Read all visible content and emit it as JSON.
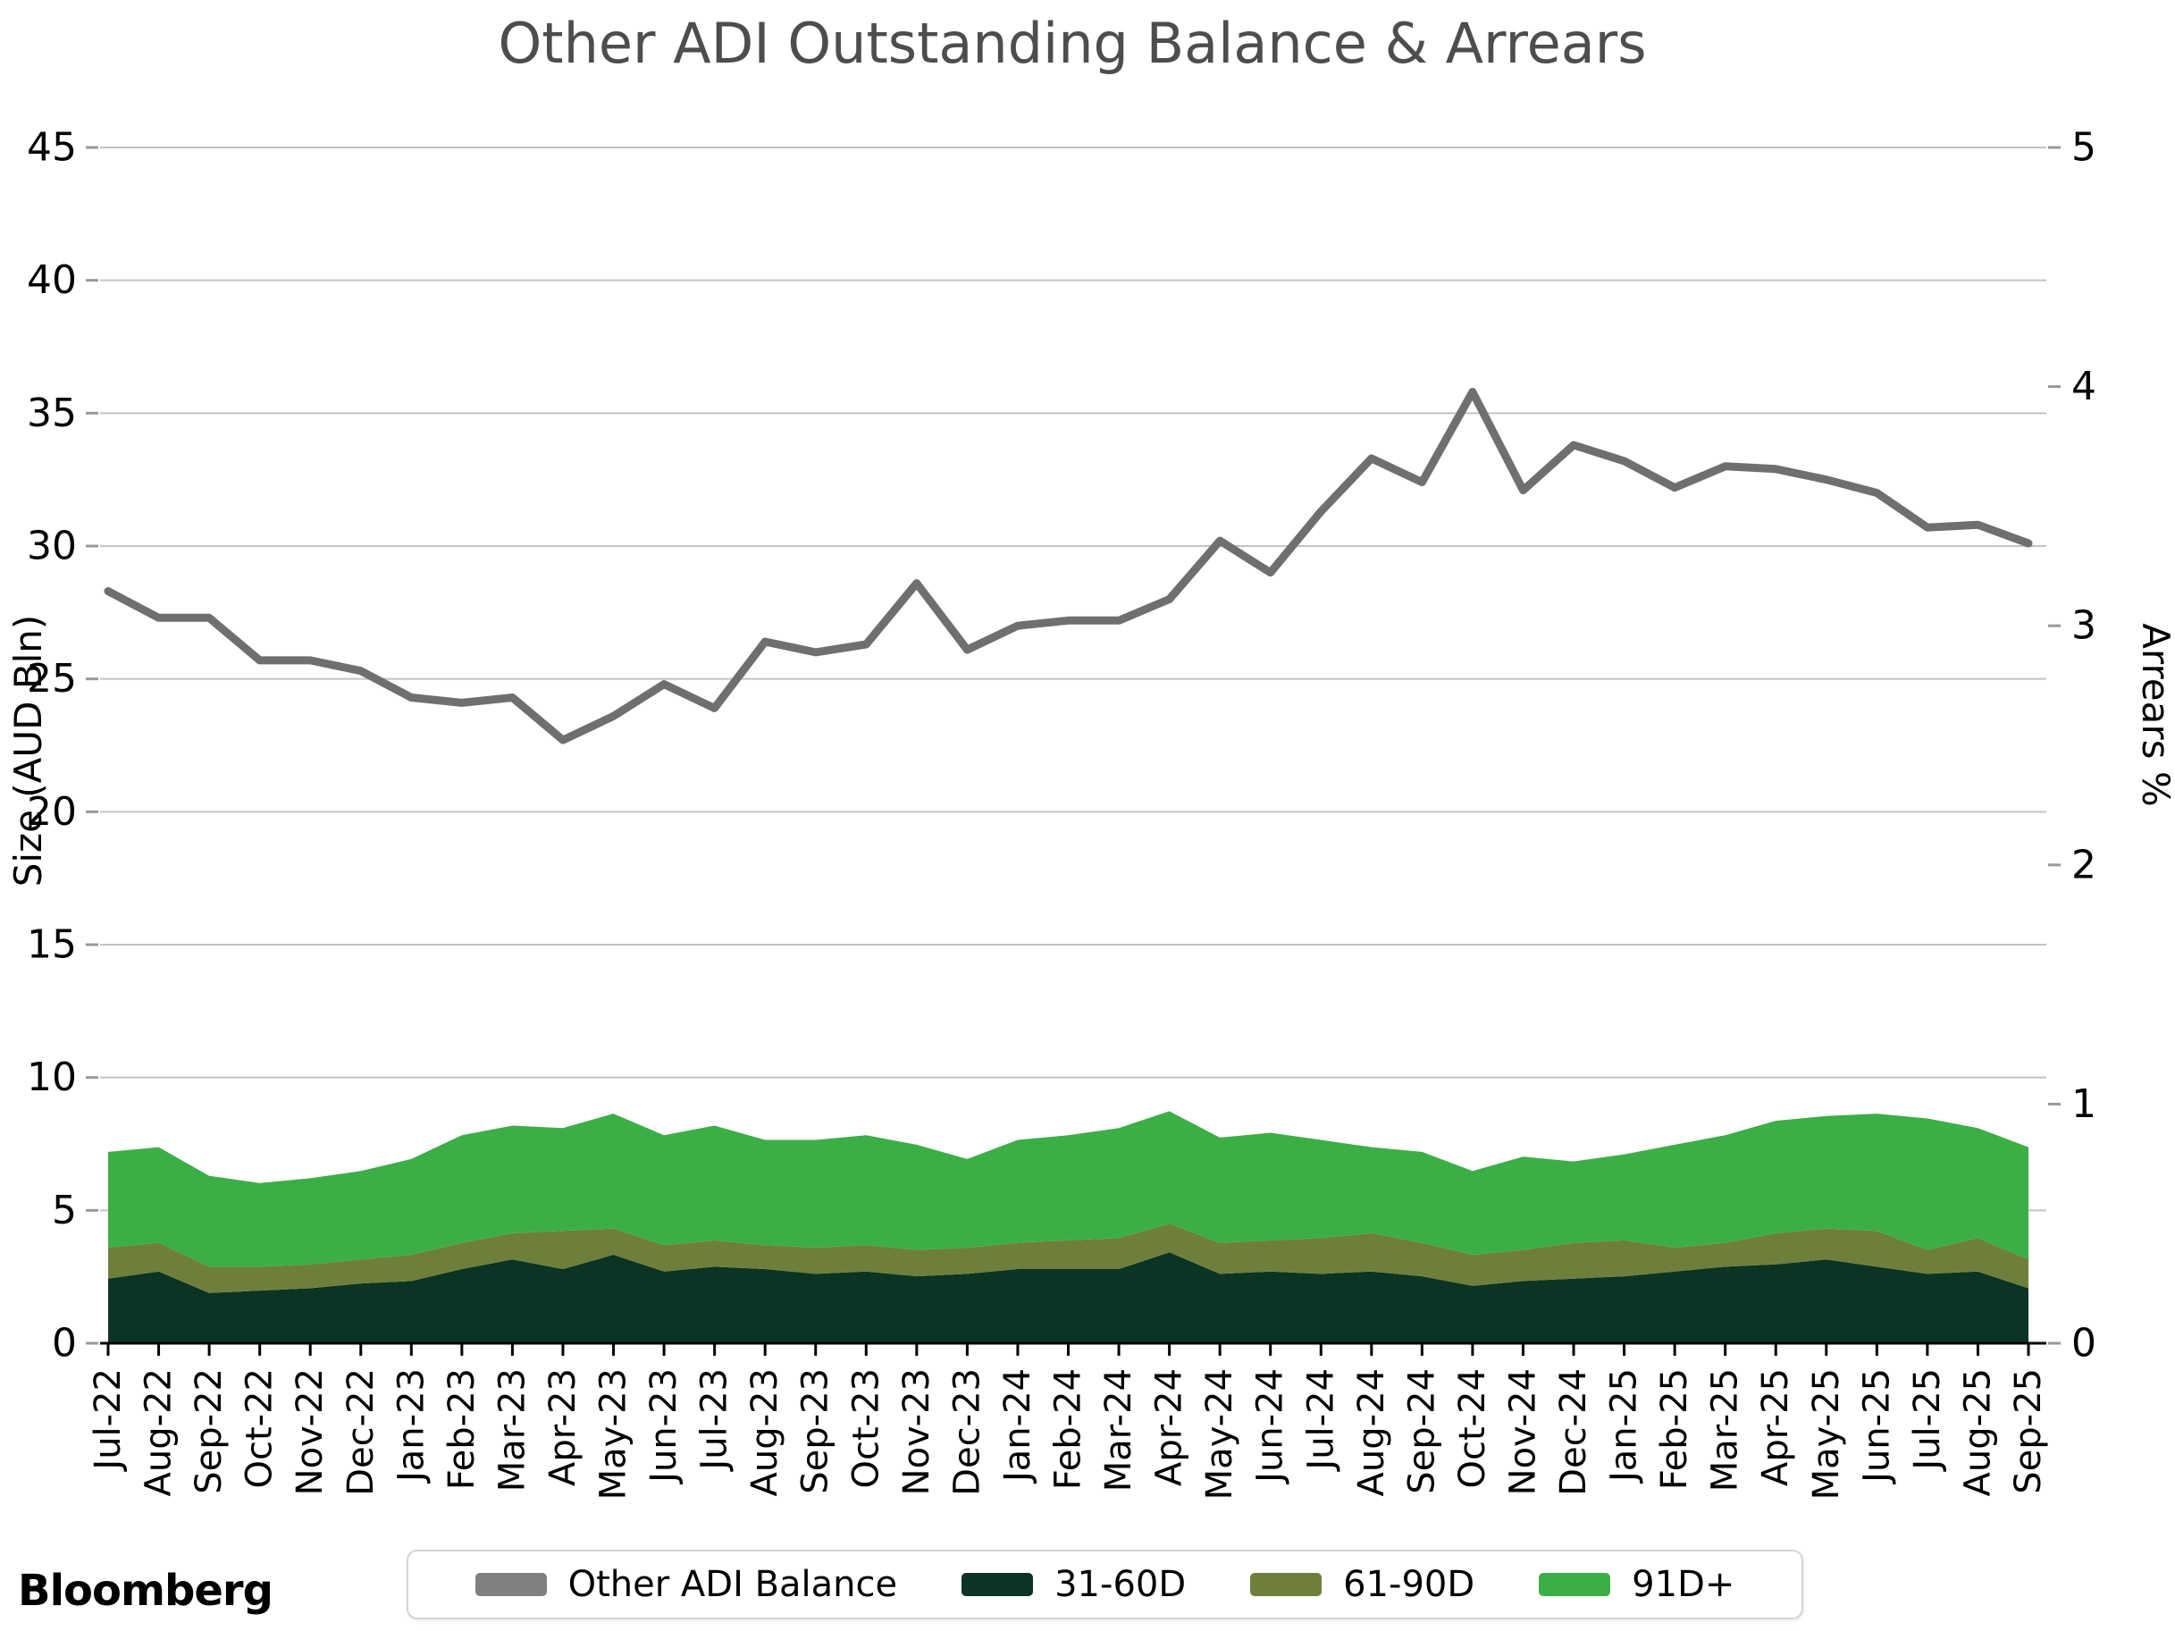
{
  "chart": {
    "title": "Other ADI Outstanding Balance & Arrears",
    "left_axis": {
      "title": "Size (AUD Bln)"
    },
    "right_axis": {
      "title": "Arrears %"
    }
  },
  "branding": {
    "logo_text": "Bloomberg"
  },
  "legend": {
    "items": [
      {
        "label": "Other ADI Balance",
        "color": "#808080"
      },
      {
        "label": "31-60D",
        "color": "#0c3424"
      },
      {
        "label": "61-90D",
        "color": "#6e7f3c"
      },
      {
        "label": "91D+",
        "color": "#3cae46"
      }
    ]
  },
  "colors": {
    "line": "#6f6f6f",
    "dark_green": "#0c3424",
    "olive": "#6e7f3c",
    "bright_green": "#3cae46",
    "gridline": "#c3c3c3",
    "axis_tick": "#999999",
    "spine": "#000000",
    "title_text": "#4d4d4d",
    "tick_text": "#000000"
  },
  "chart_data": {
    "type": "line+stacked-area",
    "title": "Other ADI Outstanding Balance & Arrears",
    "categories": [
      "Jul-22",
      "Aug-22",
      "Sep-22",
      "Oct-22",
      "Nov-22",
      "Dec-22",
      "Jan-23",
      "Feb-23",
      "Mar-23",
      "Apr-23",
      "May-23",
      "Jun-23",
      "Jul-23",
      "Aug-23",
      "Sep-23",
      "Oct-23",
      "Nov-23",
      "Dec-23",
      "Jan-24",
      "Feb-24",
      "Mar-24",
      "Apr-24",
      "May-24",
      "Jun-24",
      "Jul-24",
      "Aug-24",
      "Sep-24",
      "Oct-24",
      "Nov-24",
      "Dec-24",
      "Jan-25",
      "Feb-25",
      "Mar-25",
      "Apr-25",
      "May-25",
      "Jun-25",
      "Jul-25",
      "Aug-25",
      "Sep-25"
    ],
    "line_series": {
      "name": "Other ADI Balance",
      "axis": "left",
      "ylabel": "Size (AUD Bln)",
      "color": "#6f6f6f",
      "values": [
        28.3,
        27.3,
        27.3,
        25.7,
        25.7,
        25.3,
        24.3,
        24.1,
        24.3,
        22.7,
        23.6,
        24.8,
        23.9,
        26.4,
        26.0,
        26.3,
        28.6,
        26.1,
        27.0,
        27.2,
        27.2,
        28.0,
        30.2,
        29.0,
        31.3,
        33.3,
        32.4,
        35.8,
        32.1,
        33.8,
        33.2,
        32.2,
        33.0,
        32.9,
        32.5,
        32.0,
        30.7,
        30.8,
        30.1
      ]
    },
    "stacked_series": [
      {
        "name": "31-60D",
        "axis": "right",
        "color": "#0c3424",
        "values": [
          0.27,
          0.3,
          0.21,
          0.22,
          0.23,
          0.25,
          0.26,
          0.31,
          0.35,
          0.31,
          0.37,
          0.3,
          0.32,
          0.31,
          0.29,
          0.3,
          0.28,
          0.29,
          0.31,
          0.31,
          0.31,
          0.38,
          0.29,
          0.3,
          0.29,
          0.3,
          0.28,
          0.24,
          0.26,
          0.27,
          0.28,
          0.3,
          0.32,
          0.33,
          0.35,
          0.32,
          0.29,
          0.3,
          0.23
        ]
      },
      {
        "name": "61-90D",
        "axis": "right",
        "color": "#6e7f3c",
        "values": [
          0.13,
          0.12,
          0.11,
          0.1,
          0.1,
          0.1,
          0.11,
          0.11,
          0.11,
          0.16,
          0.11,
          0.11,
          0.11,
          0.1,
          0.11,
          0.11,
          0.11,
          0.11,
          0.11,
          0.12,
          0.13,
          0.12,
          0.13,
          0.13,
          0.15,
          0.16,
          0.14,
          0.13,
          0.13,
          0.15,
          0.15,
          0.1,
          0.1,
          0.13,
          0.13,
          0.15,
          0.1,
          0.14,
          0.12
        ]
      },
      {
        "name": "91D+",
        "axis": "right",
        "color": "#3cae46",
        "values": [
          0.4,
          0.4,
          0.38,
          0.35,
          0.36,
          0.37,
          0.4,
          0.45,
          0.45,
          0.43,
          0.48,
          0.46,
          0.48,
          0.44,
          0.45,
          0.46,
          0.44,
          0.37,
          0.43,
          0.44,
          0.46,
          0.47,
          0.44,
          0.45,
          0.41,
          0.36,
          0.38,
          0.35,
          0.39,
          0.34,
          0.36,
          0.43,
          0.45,
          0.47,
          0.47,
          0.49,
          0.55,
          0.46,
          0.47
        ]
      }
    ],
    "left_axis": {
      "label": "Size (AUD Bln)",
      "range": [
        0,
        45
      ],
      "ticks": [
        0,
        5,
        10,
        15,
        20,
        25,
        30,
        35,
        40,
        45
      ]
    },
    "right_axis": {
      "label": "Arrears %",
      "range": [
        0,
        5
      ],
      "ticks": [
        0,
        1,
        2,
        3,
        4,
        5
      ]
    },
    "grid": "horizontal",
    "legend_position": "bottom"
  }
}
